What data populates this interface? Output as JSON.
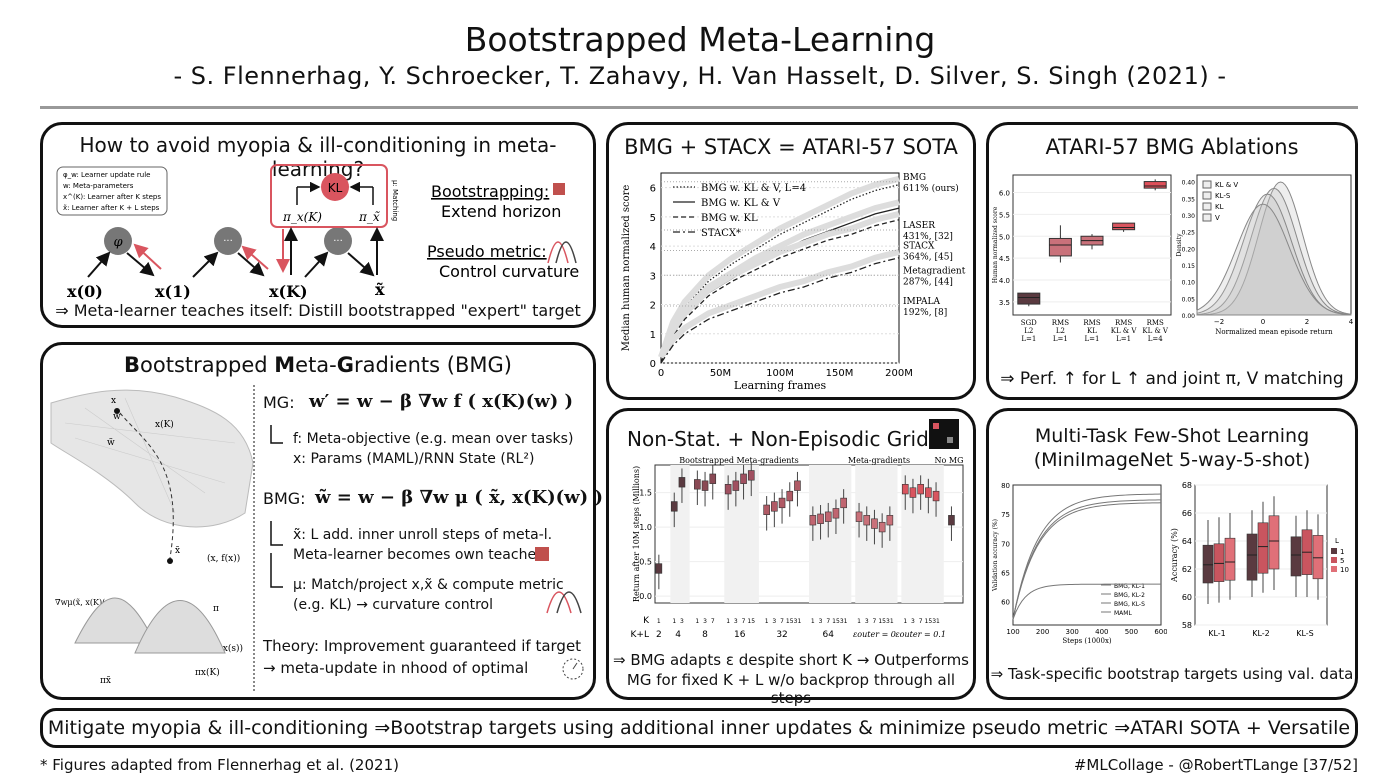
{
  "header": {
    "title": "Bootstrapped Meta-Learning",
    "authors": "- S. Flennerhag, Y. Schroecker, T. Zahavy, H. Van Hasselt, D. Silver, S. Singh (2021) -"
  },
  "panel1": {
    "question": "How to avoid myopia & ill-conditioning in meta-learning?",
    "legend": [
      "φ_w: Learner update rule",
      "w: Meta-parameters",
      "x^(K): Learner after K steps",
      "x̃: Learner after K + L steps"
    ],
    "node_phi": "φ",
    "node_dots": "···",
    "kl": "KL",
    "pi_xk": "π_x(K)",
    "pi_xt": "π_x̃",
    "matching": "μ: Matching",
    "x0": "x(0)",
    "x1": "x(1)",
    "xk": "x(K)",
    "xt": "x̃",
    "bootstrapping_label": "Bootstrapping:",
    "bootstrapping_desc": "Extend horizon",
    "pseudo_label": "Pseudo metric:",
    "pseudo_desc": "Control curvature",
    "summary": "⇒ Meta-learner teaches itself: Distill bootstrapped \"expert\" target"
  },
  "panel2": {
    "title_parts": [
      "B",
      "ootstrapped ",
      "M",
      "eta-",
      "G",
      "radients (BMG)"
    ],
    "mg_label": "MG:",
    "mg_eq": "w′ = w − β ∇w f ( x(K)(w) )",
    "mg_f": "f: Meta-objective (e.g. mean over tasks)",
    "mg_x": "x: Params (MAML)/RNN State (RL²)",
    "bmg_label": "BMG:",
    "bmg_eq": "w̃ = w − β ∇w μ ( x̃, x(K)(w) )",
    "bmg_xt1": "x̃: L add. inner unroll steps of meta-l.",
    "bmg_xt2": "Meta-learner becomes own teacher",
    "bmg_mu1": "μ: Match/project x,x̃ & compute metric",
    "bmg_mu2": "(e.g. KL) → curvature control",
    "theory1": "Theory: Improvement guaranteed if target",
    "theory2": "→ meta-update in nhood of optimal",
    "fig_labels": {
      "x": "x",
      "w": "w",
      "xk": "x(K)",
      "wt": "w̃",
      "xt": "x̃",
      "xfx": "(x, f(x))",
      "pi": "π",
      "spi": "(s, πx(s))",
      "grad": "∇wμ(x̃, x(K)(w))",
      "pixk": "πx(K)",
      "pixt": "πx̃"
    }
  },
  "panel3": {
    "title": "BMG + STACX = ATARI-57 SOTA",
    "chart_data": {
      "type": "line",
      "xlabel": "Learning frames",
      "ylabel": "Median human normalized score",
      "xlim": [
        0,
        200
      ],
      "ylim": [
        0,
        6.5
      ],
      "xticks": [
        0,
        50,
        100,
        150,
        200
      ],
      "xtick_labels": [
        "0",
        "50M",
        "100M",
        "150M",
        "200M"
      ],
      "yticks": [
        0,
        1,
        2,
        3,
        4,
        5,
        6
      ],
      "legend_position": "top-left",
      "series": [
        {
          "name": "BMG w. KL & V, L=4",
          "style": "dotted",
          "x": [
            0,
            10,
            20,
            40,
            60,
            80,
            100,
            120,
            140,
            160,
            180,
            200
          ],
          "y": [
            0,
            1.2,
            1.9,
            2.8,
            3.4,
            3.9,
            4.4,
            4.8,
            5.2,
            5.6,
            5.9,
            6.1
          ]
        },
        {
          "name": "BMG w. KL & V",
          "style": "solid",
          "x": [
            0,
            10,
            20,
            40,
            60,
            80,
            100,
            120,
            140,
            160,
            180,
            200
          ],
          "y": [
            0,
            1.0,
            1.6,
            2.4,
            2.9,
            3.4,
            3.8,
            4.2,
            4.5,
            4.8,
            5.1,
            5.3
          ]
        },
        {
          "name": "BMG w. KL",
          "style": "dashed",
          "x": [
            0,
            10,
            20,
            40,
            60,
            80,
            100,
            120,
            140,
            160,
            180,
            200
          ],
          "y": [
            0,
            0.9,
            1.5,
            2.3,
            2.8,
            3.2,
            3.6,
            3.9,
            4.2,
            4.4,
            4.7,
            4.9
          ]
        },
        {
          "name": "STACX*",
          "style": "dashdot",
          "x": [
            0,
            10,
            20,
            40,
            60,
            80,
            100,
            120,
            140,
            160,
            180,
            200
          ],
          "y": [
            0,
            0.6,
            1.0,
            1.5,
            1.8,
            2.1,
            2.4,
            2.6,
            2.9,
            3.1,
            3.4,
            3.6
          ]
        }
      ],
      "annotations": [
        {
          "text": "BMG",
          "text2": "611% (ours)",
          "y": 6.2
        },
        {
          "text": "LASER",
          "text2": "431%, [32]",
          "y": 4.55
        },
        {
          "text": "STACX",
          "text2": "364%, [45]",
          "y": 3.85
        },
        {
          "text": "Metagradient",
          "text2": "287%, [44]",
          "y": 3.0
        },
        {
          "text": "IMPALA",
          "text2": "192%, [8]",
          "y": 1.95
        }
      ]
    }
  },
  "panel4": {
    "title": "ATARI-57 BMG Ablations",
    "box_chart": {
      "type": "box",
      "ylabel": "Human normalized score",
      "ylim": [
        3.2,
        6.4
      ],
      "yticks": [
        3.5,
        4.0,
        4.5,
        5.0,
        5.5,
        6.0
      ],
      "categories": [
        [
          "SGD",
          "L2",
          "L=1"
        ],
        [
          "RMS",
          "L2",
          "L=1"
        ],
        [
          "RMS",
          "KL",
          "L=1"
        ],
        [
          "RMS",
          "KL & V",
          "L=1"
        ],
        [
          "RMS",
          "KL & V",
          "L=4"
        ]
      ],
      "boxes": [
        {
          "q1": 3.45,
          "med": 3.6,
          "q3": 3.7,
          "lo": 3.4,
          "hi": 3.7,
          "color": "#5a3a40"
        },
        {
          "q1": 4.55,
          "med": 4.8,
          "q3": 4.95,
          "lo": 4.4,
          "hi": 5.25,
          "color": "#c9717a"
        },
        {
          "q1": 4.8,
          "med": 4.9,
          "q3": 5.0,
          "lo": 4.7,
          "hi": 5.05,
          "color": "#c9717a"
        },
        {
          "q1": 5.15,
          "med": 5.2,
          "q3": 5.3,
          "lo": 5.1,
          "hi": 5.3,
          "color": "#d9555f"
        },
        {
          "q1": 6.1,
          "med": 6.15,
          "q3": 6.25,
          "lo": 6.05,
          "hi": 6.3,
          "color": "#e0505a"
        }
      ]
    },
    "density_chart": {
      "type": "area",
      "xlabel": "Normalized mean episode return",
      "ylabel": "Density",
      "xlim": [
        -3,
        4
      ],
      "ylim": [
        0,
        0.42
      ],
      "xticks": [
        -2,
        0,
        2,
        4
      ],
      "yticks": [
        0.0,
        0.05,
        0.1,
        0.15,
        0.2,
        0.25,
        0.3,
        0.35,
        0.4
      ],
      "legend_position": "top-left",
      "series": [
        {
          "name": "KL & V",
          "mean": 0.8,
          "sd": 1.0
        },
        {
          "name": "KL-S",
          "mean": 0.5,
          "sd": 1.05
        },
        {
          "name": "KL",
          "mean": 0.2,
          "sd": 1.1
        },
        {
          "name": "V",
          "mean": 0.0,
          "sd": 1.2
        }
      ]
    },
    "caption": "⇒  Perf. ↑ for L ↑ and joint π, V matching"
  },
  "panel5": {
    "title": "Non-Stat. + Non-Episodic Grid",
    "chart_data": {
      "type": "box",
      "ylabel": "Return after 10M steps (Millions)",
      "ylim": [
        -0.1,
        1.9
      ],
      "yticks": [
        0.0,
        0.5,
        1.0,
        1.5
      ],
      "group_labels": [
        "Bootstrapped Meta-gradients",
        "Meta-gradients",
        "No MG"
      ],
      "k_row_label": "K",
      "kl_row_label": "K+L",
      "kl_values": [
        "2",
        "4",
        "8",
        "16",
        "32",
        "64"
      ],
      "eps_labels": [
        "εouter = 0",
        "εouter = 0.1"
      ],
      "groups": [
        {
          "kl": "2",
          "k": [
            "1"
          ],
          "med": [
            0.4
          ],
          "color": "#5a3a40"
        },
        {
          "kl": "4",
          "k": [
            "1",
            "3"
          ],
          "med": [
            1.3,
            1.65
          ],
          "color": "#5a3a40"
        },
        {
          "kl": "8",
          "k": [
            "1",
            "3",
            "7"
          ],
          "med": [
            1.62,
            1.6,
            1.7
          ],
          "color": "#8a4a55"
        },
        {
          "kl": "16",
          "k": [
            "1",
            "3",
            "7",
            "15"
          ],
          "med": [
            1.55,
            1.6,
            1.7,
            1.75
          ],
          "color": "#a05060"
        },
        {
          "kl": "32",
          "k": [
            "1",
            "3",
            "7",
            "15",
            "31"
          ],
          "med": [
            1.25,
            1.3,
            1.35,
            1.45,
            1.6
          ],
          "color": "#b05a65"
        },
        {
          "kl": "64",
          "k": [
            "1",
            "3",
            "7",
            "15",
            "31"
          ],
          "med": [
            1.1,
            1.12,
            1.15,
            1.2,
            1.35
          ],
          "color": "#c06570"
        },
        {
          "kl": "eps0",
          "k": [
            "1",
            "3",
            "7",
            "15",
            "31"
          ],
          "med": [
            1.15,
            1.1,
            1.05,
            1.0,
            1.1
          ],
          "color": "#c9717a"
        },
        {
          "kl": "eps01",
          "k": [
            "1",
            "3",
            "7",
            "15",
            "31"
          ],
          "med": [
            1.55,
            1.5,
            1.55,
            1.5,
            1.45
          ],
          "color": "#d9555f"
        },
        {
          "kl": "nomg",
          "k": [
            ""
          ],
          "med": [
            1.1
          ],
          "color": "#5a3a40"
        }
      ]
    },
    "caption1": "⇒ BMG adapts ε despite short K → Outperforms",
    "caption2": "MG for fixed K + L w/o backprop through all steps"
  },
  "panel6": {
    "title1": "Multi-Task Few-Shot Learning",
    "title2": "(MiniImageNet 5-way-5-shot)",
    "line_chart": {
      "type": "line",
      "xlabel": "Steps (1000x)",
      "ylabel": "Validation accuracy (%)",
      "xlim": [
        100,
        600
      ],
      "ylim": [
        56,
        80
      ],
      "xticks": [
        100,
        200,
        300,
        400,
        500,
        600
      ],
      "yticks": [
        60,
        65,
        70,
        75,
        80
      ],
      "legend_position": "bottom-right",
      "series": [
        {
          "name": "BMG, KL-1",
          "final": 77.5
        },
        {
          "name": "BMG, KL-2",
          "final": 78.5
        },
        {
          "name": "BMG, KL-S",
          "final": 77.0
        },
        {
          "name": "MAML",
          "final": 63.0
        }
      ]
    },
    "box_chart": {
      "type": "box",
      "ylabel": "Accuracy (%)",
      "ylim": [
        58,
        68
      ],
      "yticks": [
        58,
        60,
        62,
        64,
        66,
        68
      ],
      "categories": [
        "KL-1",
        "KL-2",
        "KL-S"
      ],
      "legend_title": "L",
      "legend": [
        "1",
        "5",
        "10"
      ],
      "colors": [
        "#5a3a40",
        "#c9555f",
        "#e07078"
      ],
      "boxes": [
        [
          {
            "q1": 61.0,
            "med": 62.3,
            "q3": 63.7,
            "lo": 59.5,
            "hi": 65.5
          },
          {
            "q1": 61.1,
            "med": 62.4,
            "q3": 63.8,
            "lo": 59.6,
            "hi": 65.7
          },
          {
            "q1": 61.2,
            "med": 62.5,
            "q3": 64.2,
            "lo": 59.8,
            "hi": 66.0
          }
        ],
        [
          {
            "q1": 61.2,
            "med": 63.0,
            "q3": 64.5,
            "lo": 60.0,
            "hi": 66.2
          },
          {
            "q1": 61.7,
            "med": 63.6,
            "q3": 65.3,
            "lo": 60.3,
            "hi": 66.8
          },
          {
            "q1": 62.0,
            "med": 64.0,
            "q3": 65.8,
            "lo": 60.5,
            "hi": 67.2
          }
        ],
        [
          {
            "q1": 61.5,
            "med": 63.0,
            "q3": 64.3,
            "lo": 60.0,
            "hi": 65.8
          },
          {
            "q1": 61.6,
            "med": 63.2,
            "q3": 64.8,
            "lo": 60.0,
            "hi": 66.2
          },
          {
            "q1": 61.3,
            "med": 62.8,
            "q3": 64.4,
            "lo": 59.8,
            "hi": 65.9
          }
        ]
      ]
    },
    "caption": "⇒ Task-specific bootstrap targets using val. data"
  },
  "footer": {
    "summary": "Mitigate myopia & ill-conditioning ⇒Bootstrap targets using additional inner updates & minimize pseudo metric ⇒ATARI SOTA + Versatile",
    "left": "* Figures adapted from Flennerhag et al. (2021)",
    "right": "#MLCollage - @RobertTLange [37/52]"
  }
}
